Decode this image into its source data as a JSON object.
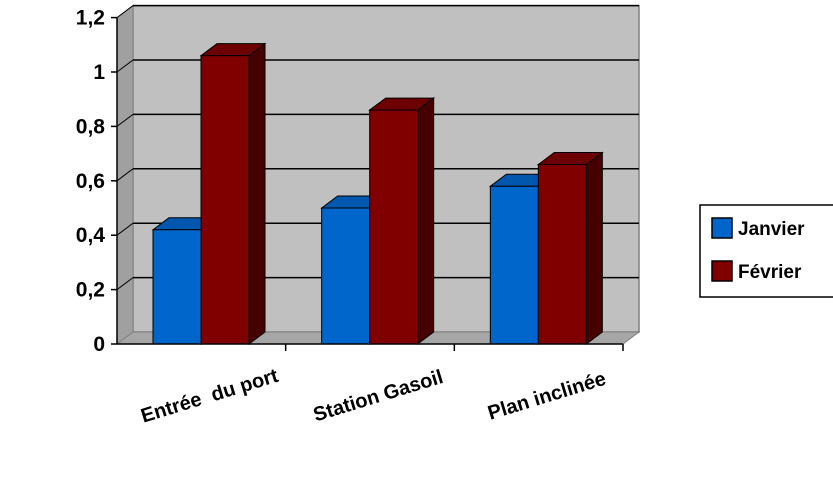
{
  "chart_data": {
    "type": "bar",
    "categories": [
      "Entrée  du port",
      "Station Gasoil",
      "Plan inclinée"
    ],
    "series": [
      {
        "name": "Janvier",
        "values": [
          0.42,
          0.5,
          0.58
        ],
        "color": "#0066CC"
      },
      {
        "name": "Février",
        "values": [
          1.06,
          0.86,
          0.66
        ],
        "color": "#800000"
      }
    ],
    "ylim": [
      0,
      1.2
    ],
    "yticks": [
      "0",
      "0,2",
      "0,4",
      "0,6",
      "0,8",
      "1",
      "1,2"
    ],
    "grid": true,
    "three_d": true,
    "legend_position": "right",
    "colors": {
      "wall": "#C0C0C0",
      "floor": "#A6A6A6"
    }
  }
}
